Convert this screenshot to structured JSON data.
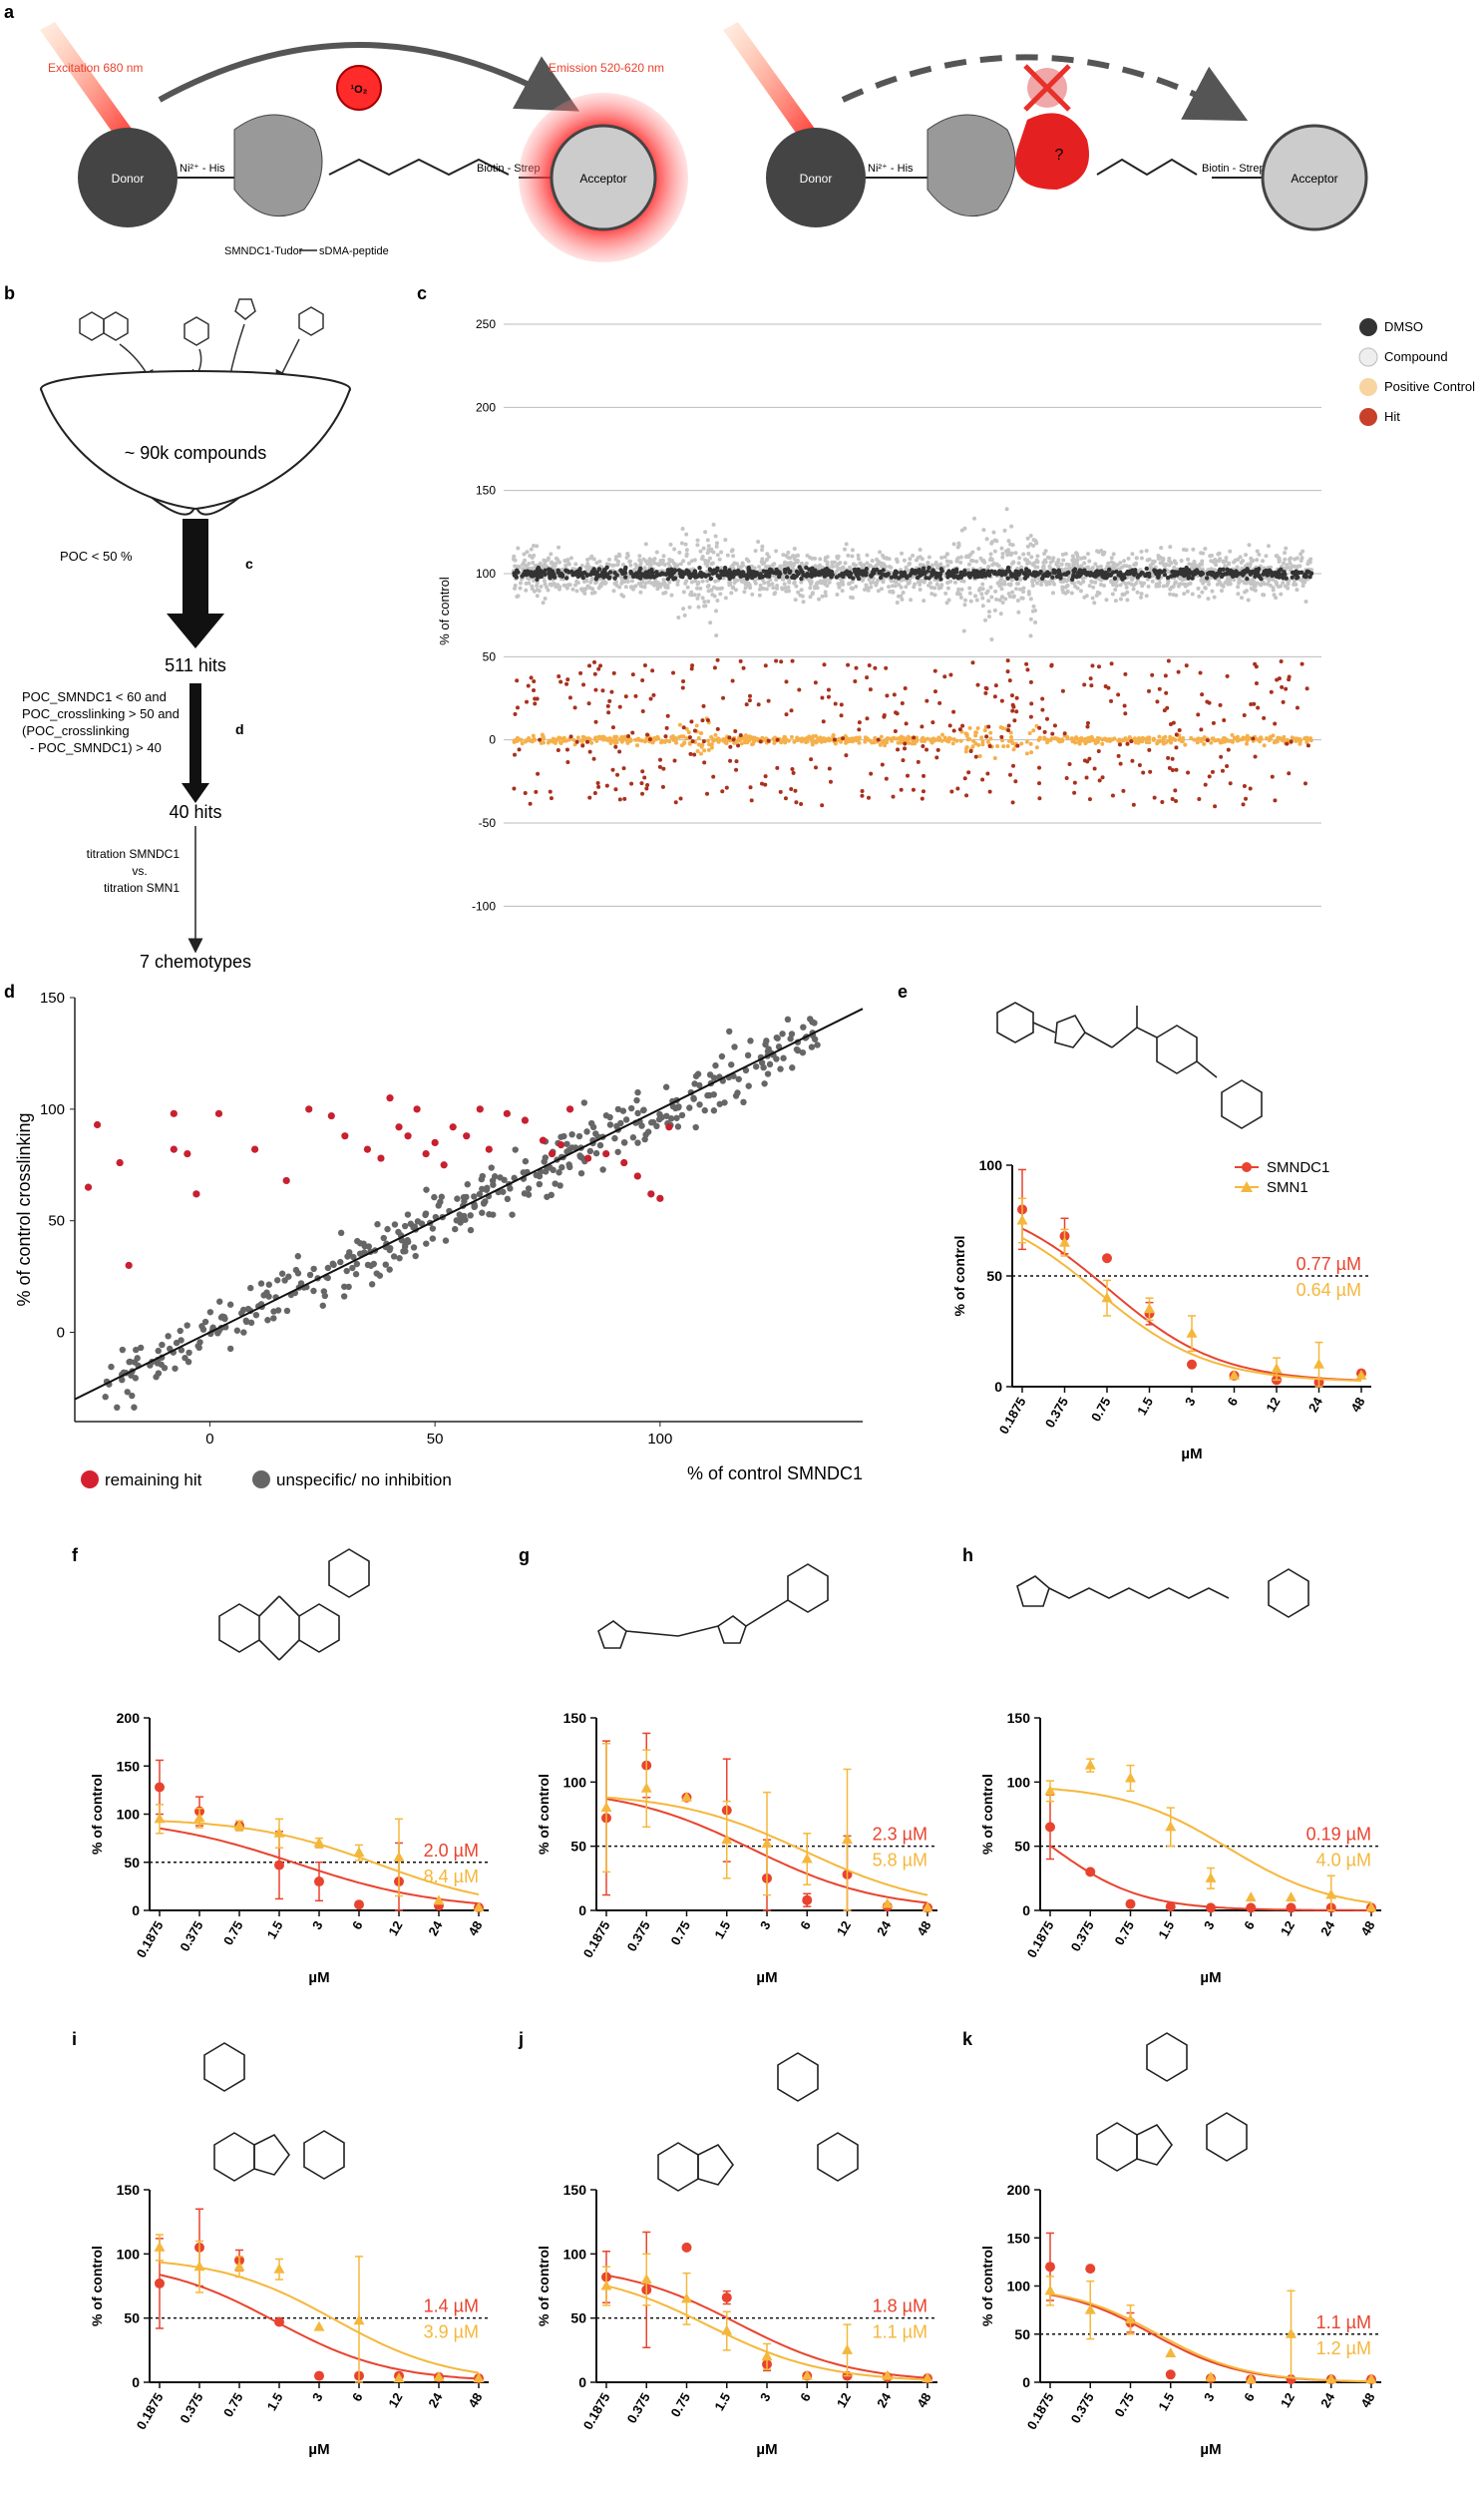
{
  "panels": {
    "a": {
      "label": "a",
      "left": {
        "excitation": "Excitation 680 nm",
        "emission": "Emission 520-620 nm",
        "singlet": "¹O₂",
        "donor": "Donor",
        "acceptor": "Acceptor",
        "nihis": "Ni²⁺ - His",
        "biotin": "Biotin - Strep",
        "caption": "SMNDC1-Tudor",
        "peptide": "sDMA-peptide"
      },
      "right": {
        "donor": "Donor",
        "acceptor": "Acceptor",
        "nihis": "Ni²⁺ - His",
        "biotin": "Biotin - Strep",
        "question": "?"
      }
    },
    "b": {
      "label": "b",
      "funnel_text": "~ 90k compounds",
      "step1": "POC < 50 %",
      "step1_ref": "c",
      "hits1": "511 hits",
      "step2_lines": [
        "POC_SMNDC1 < 60 and",
        "POC_crosslinking > 50 and",
        "(POC_crosslinking",
        "- POC_SMNDC1) > 40"
      ],
      "step2_ref": "d",
      "hits2": "40 hits",
      "step3_lines": [
        "titration SMNDC1",
        "vs.",
        "titration SMN1"
      ],
      "final": "7 chemotypes"
    },
    "c": {
      "label": "c",
      "legend": [
        "DMSO",
        "Compound",
        "Positive Control",
        "Hit"
      ]
    },
    "d": {
      "label": "d",
      "legend": [
        "remaining hit",
        "unspecific/ no inhibition"
      ]
    },
    "e": {
      "label": "e",
      "legend": [
        "SMNDC1",
        "SMN1"
      ]
    },
    "f": {
      "label": "f"
    },
    "g": {
      "label": "g"
    },
    "h": {
      "label": "h"
    },
    "i": {
      "label": "i"
    },
    "j": {
      "label": "j"
    },
    "k": {
      "label": "k"
    }
  },
  "colors": {
    "smndc1": "#e8432e",
    "smn1": "#f5b73b",
    "dark": "#333333",
    "hit": "#c8202f",
    "gray": "#666666",
    "light": "#c4c4c4",
    "pos": "#f5b04a",
    "hitc": "#a9301c"
  },
  "chart_data": [
    {
      "id": "c",
      "type": "scatter",
      "ylabel": "% of control",
      "ylim": [
        -110,
        265
      ],
      "yticks": [
        -100,
        -50,
        0,
        50,
        100,
        150,
        200,
        250
      ],
      "series": [
        {
          "name": "DMSO",
          "center": 100,
          "spread": 5
        },
        {
          "name": "Compound",
          "center": 100,
          "spread": 20
        },
        {
          "name": "Positive Control",
          "center": 0,
          "spread": 3
        },
        {
          "name": "Hit",
          "range": [
            -45,
            50
          ]
        }
      ],
      "note": "~90k compounds plotted in screening order"
    },
    {
      "id": "d",
      "type": "scatter",
      "xlabel": "% of control SMNDC1",
      "ylabel": "% of control crosslinking",
      "xlim": [
        -30,
        145
      ],
      "ylim": [
        -40,
        150
      ],
      "xticks": [
        0,
        50,
        100
      ],
      "yticks": [
        0,
        50,
        100,
        150
      ],
      "line": {
        "from": [
          -30,
          -30
        ],
        "to": [
          150,
          150
        ]
      },
      "remaining_hits": [
        [
          -25,
          93
        ],
        [
          -27,
          65
        ],
        [
          -20,
          76
        ],
        [
          -18,
          30
        ],
        [
          -8,
          98
        ],
        [
          -8,
          82
        ],
        [
          -5,
          80
        ],
        [
          -3,
          62
        ],
        [
          2,
          98
        ],
        [
          10,
          82
        ],
        [
          17,
          68
        ],
        [
          22,
          100
        ],
        [
          27,
          97
        ],
        [
          30,
          88
        ],
        [
          35,
          82
        ],
        [
          38,
          78
        ],
        [
          40,
          105
        ],
        [
          42,
          92
        ],
        [
          44,
          88
        ],
        [
          46,
          100
        ],
        [
          48,
          80
        ],
        [
          50,
          85
        ],
        [
          52,
          75
        ],
        [
          54,
          92
        ],
        [
          57,
          88
        ],
        [
          60,
          100
        ],
        [
          62,
          82
        ],
        [
          66,
          98
        ],
        [
          70,
          95
        ],
        [
          74,
          86
        ],
        [
          76,
          80
        ],
        [
          78,
          84
        ],
        [
          80,
          100
        ],
        [
          84,
          78
        ],
        [
          88,
          80
        ],
        [
          92,
          76
        ],
        [
          95,
          70
        ],
        [
          98,
          62
        ],
        [
          100,
          60
        ],
        [
          102,
          92
        ]
      ],
      "series": [
        "remaining hit",
        "unspecific/ no inhibition"
      ]
    },
    {
      "id": "e",
      "type": "line",
      "xlabel": "µM",
      "ylabel": "% of control",
      "x": [
        0.1875,
        0.375,
        0.75,
        1.5,
        3,
        6,
        12,
        24,
        48
      ],
      "ylim": [
        0,
        100
      ],
      "yticks": [
        0,
        50,
        100
      ],
      "ic50": {
        "SMNDC1": "0.77 µM",
        "SMN1": "0.64 µM"
      },
      "series": [
        {
          "name": "SMNDC1",
          "values": [
            80,
            68,
            58,
            33,
            10,
            5,
            3,
            2,
            6
          ],
          "err": [
            18,
            8,
            0,
            5,
            0,
            0,
            0,
            0,
            0
          ],
          "fit": {
            "top": 86,
            "bottom": 2,
            "ic50": 0.77,
            "hill": 1.1
          }
        },
        {
          "name": "SMN1",
          "values": [
            75,
            65,
            40,
            35,
            24,
            5,
            8,
            10,
            5
          ],
          "err": [
            10,
            6,
            8,
            5,
            8,
            0,
            5,
            10,
            0
          ],
          "fit": {
            "top": 84,
            "bottom": 2,
            "ic50": 0.64,
            "hill": 1.1
          }
        }
      ]
    },
    {
      "id": "f",
      "type": "line",
      "xlabel": "µM",
      "ylabel": "% of control",
      "x": [
        0.1875,
        0.375,
        0.75,
        1.5,
        3,
        6,
        12,
        24,
        48
      ],
      "ylim": [
        0,
        200
      ],
      "yticks": [
        0,
        50,
        100,
        150,
        200
      ],
      "ic50": {
        "SMNDC1": "2.0 µM",
        "SMN1": "8.4 µM"
      },
      "series": [
        {
          "name": "SMNDC1",
          "values": [
            128,
            103,
            88,
            47,
            30,
            6,
            30,
            5,
            3
          ],
          "err": [
            28,
            15,
            5,
            35,
            20,
            0,
            40,
            0,
            0
          ],
          "fit": {
            "top": 98,
            "bottom": 0,
            "ic50": 2.0,
            "hill": 0.8
          }
        },
        {
          "name": "SMN1",
          "values": [
            95,
            96,
            88,
            80,
            70,
            60,
            55,
            10,
            3
          ],
          "err": [
            15,
            10,
            5,
            15,
            5,
            8,
            40,
            0,
            0
          ],
          "fit": {
            "top": 96,
            "bottom": 0,
            "ic50": 8.4,
            "hill": 0.9
          }
        }
      ]
    },
    {
      "id": "g",
      "type": "line",
      "xlabel": "µM",
      "ylabel": "% of control",
      "x": [
        0.1875,
        0.375,
        0.75,
        1.5,
        3,
        6,
        12,
        24,
        48
      ],
      "ylim": [
        0,
        150
      ],
      "yticks": [
        0,
        50,
        100,
        150
      ],
      "ic50": {
        "SMNDC1": "2.3 µM",
        "SMN1": "5.8 µM"
      },
      "series": [
        {
          "name": "SMNDC1",
          "values": [
            72,
            113,
            88,
            78,
            25,
            8,
            28,
            3,
            2
          ],
          "err": [
            60,
            25,
            0,
            40,
            30,
            5,
            30,
            0,
            0
          ],
          "fit": {
            "top": 96,
            "bottom": 0,
            "ic50": 2.3,
            "hill": 0.9
          }
        },
        {
          "name": "SMN1",
          "values": [
            80,
            95,
            88,
            55,
            52,
            40,
            55,
            5,
            2
          ],
          "err": [
            50,
            30,
            0,
            30,
            40,
            20,
            55,
            0,
            0
          ],
          "fit": {
            "top": 92,
            "bottom": 0,
            "ic50": 5.8,
            "hill": 0.9
          }
        }
      ]
    },
    {
      "id": "h",
      "type": "line",
      "xlabel": "µM",
      "ylabel": "% of control",
      "x": [
        0.1875,
        0.375,
        0.75,
        1.5,
        3,
        6,
        12,
        24,
        48
      ],
      "ylim": [
        0,
        150
      ],
      "yticks": [
        0,
        50,
        100,
        150
      ],
      "ic50": {
        "SMNDC1": "0.19 µM",
        "SMN1": "4.0 µM"
      },
      "series": [
        {
          "name": "SMNDC1",
          "values": [
            65,
            30,
            5,
            3,
            2,
            2,
            2,
            2,
            2
          ],
          "err": [
            25,
            0,
            0,
            0,
            0,
            0,
            0,
            0,
            0
          ],
          "fit": {
            "top": 100,
            "bottom": 0,
            "ic50": 0.19,
            "hill": 1.3
          }
        },
        {
          "name": "SMN1",
          "values": [
            93,
            113,
            103,
            65,
            25,
            10,
            10,
            12,
            2
          ],
          "err": [
            8,
            5,
            10,
            15,
            8,
            0,
            0,
            15,
            0
          ],
          "fit": {
            "top": 98,
            "bottom": 0,
            "ic50": 4.0,
            "hill": 1.1
          }
        }
      ]
    },
    {
      "id": "i",
      "type": "line",
      "xlabel": "µM",
      "ylabel": "% of control",
      "x": [
        0.1875,
        0.375,
        0.75,
        1.5,
        3,
        6,
        12,
        24,
        48
      ],
      "ylim": [
        0,
        150
      ],
      "yticks": [
        0,
        50,
        100,
        150
      ],
      "ic50": {
        "SMNDC1": "1.4 µM",
        "SMN1": "3.9 µM"
      },
      "series": [
        {
          "name": "SMNDC1",
          "values": [
            77,
            105,
            95,
            47,
            5,
            5,
            5,
            4,
            3
          ],
          "err": [
            35,
            30,
            8,
            0,
            0,
            0,
            0,
            0,
            0
          ],
          "fit": {
            "top": 95,
            "bottom": 0,
            "ic50": 1.4,
            "hill": 1.0
          }
        },
        {
          "name": "SMN1",
          "values": [
            105,
            90,
            90,
            88,
            43,
            48,
            3,
            4,
            3
          ],
          "err": [
            10,
            20,
            8,
            8,
            0,
            50,
            0,
            0,
            0
          ],
          "fit": {
            "top": 98,
            "bottom": 0,
            "ic50": 3.9,
            "hill": 1.0
          }
        }
      ]
    },
    {
      "id": "j",
      "type": "line",
      "xlabel": "µM",
      "ylabel": "% of control",
      "x": [
        0.1875,
        0.375,
        0.75,
        1.5,
        3,
        6,
        12,
        24,
        48
      ],
      "ylim": [
        0,
        150
      ],
      "yticks": [
        0,
        50,
        100,
        150
      ],
      "ic50": {
        "SMNDC1": "1.8 µM",
        "SMN1": "1.1 µM"
      },
      "series": [
        {
          "name": "SMNDC1",
          "values": [
            82,
            72,
            105,
            66,
            14,
            5,
            5,
            4,
            3
          ],
          "err": [
            20,
            45,
            0,
            5,
            5,
            0,
            0,
            0,
            0
          ],
          "fit": {
            "top": 92,
            "bottom": 0,
            "ic50": 1.8,
            "hill": 1.0
          }
        },
        {
          "name": "SMN1",
          "values": [
            75,
            80,
            65,
            40,
            20,
            5,
            25,
            5,
            3
          ],
          "err": [
            15,
            20,
            20,
            15,
            10,
            0,
            20,
            0,
            0
          ],
          "fit": {
            "top": 88,
            "bottom": 0,
            "ic50": 1.1,
            "hill": 1.0
          }
        }
      ]
    },
    {
      "id": "k",
      "type": "line",
      "xlabel": "µM",
      "ylabel": "% of control",
      "x": [
        0.1875,
        0.375,
        0.75,
        1.5,
        3,
        6,
        12,
        24,
        48
      ],
      "ylim": [
        0,
        200
      ],
      "yticks": [
        0,
        50,
        100,
        150,
        200
      ],
      "ic50": {
        "SMNDC1": "1.1 µM",
        "SMN1": "1.2 µM"
      },
      "series": [
        {
          "name": "SMNDC1",
          "values": [
            120,
            118,
            62,
            8,
            4,
            3,
            3,
            3,
            3
          ],
          "err": [
            35,
            0,
            10,
            0,
            0,
            0,
            0,
            0,
            0
          ],
          "fit": {
            "top": 100,
            "bottom": 0,
            "ic50": 1.1,
            "hill": 1.3
          }
        },
        {
          "name": "SMN1",
          "values": [
            95,
            75,
            65,
            30,
            5,
            3,
            50,
            3,
            3
          ],
          "err": [
            15,
            30,
            15,
            0,
            0,
            0,
            45,
            0,
            0
          ],
          "fit": {
            "top": 100,
            "bottom": 0,
            "ic50": 1.2,
            "hill": 1.3
          }
        }
      ]
    }
  ]
}
